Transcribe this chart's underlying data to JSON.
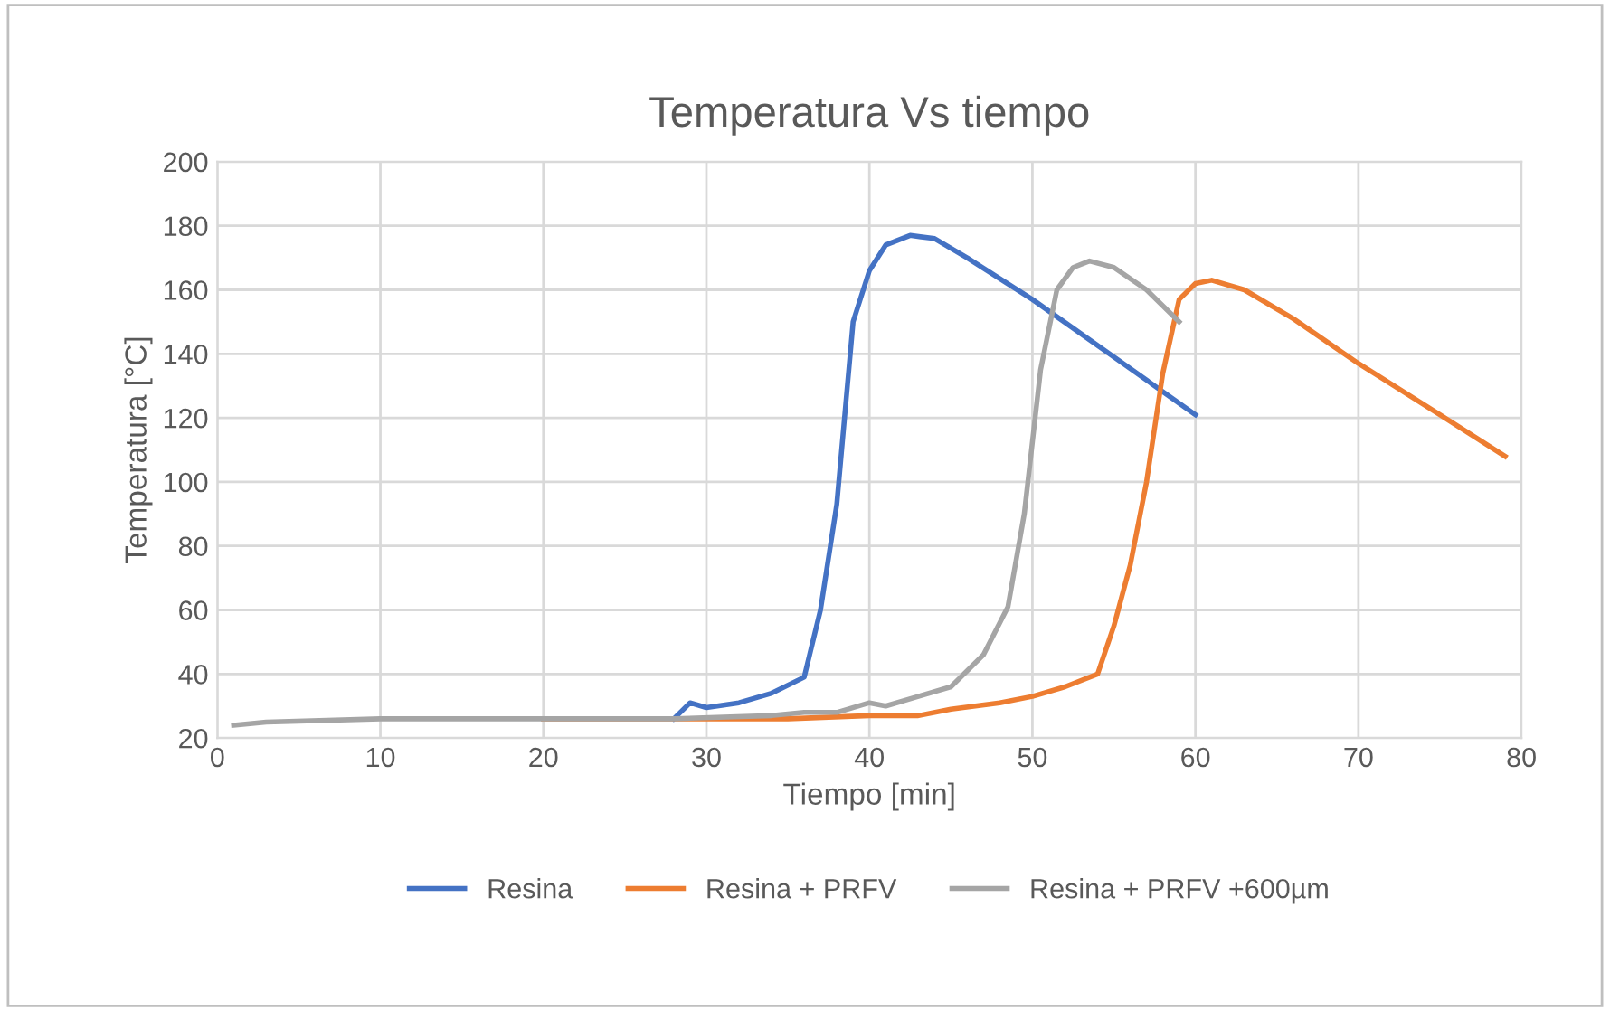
{
  "chart_data": {
    "type": "line",
    "title": "Temperatura Vs tiempo",
    "xlabel": "Tiempo [min]",
    "ylabel": "Temperatura [°C]",
    "xlim": [
      0,
      80
    ],
    "xticks": [
      0,
      10,
      20,
      30,
      40,
      50,
      60,
      70,
      80
    ],
    "ylim": [
      20,
      200
    ],
    "yticks": [
      20,
      40,
      60,
      80,
      100,
      120,
      140,
      160,
      180,
      200
    ],
    "grid": true,
    "legend": "bottom",
    "marker": "none",
    "line_style": "solid",
    "series": [
      {
        "name": "Resina",
        "color": "#4472c4",
        "x": [
          28,
          29,
          30,
          32,
          34,
          36,
          37,
          38,
          39,
          40,
          41,
          42.5,
          44,
          46,
          50,
          55,
          60
        ],
        "values": [
          26,
          31,
          29.5,
          31,
          34,
          39,
          60,
          93,
          150,
          166,
          174,
          177,
          176,
          170,
          157,
          139,
          121
        ]
      },
      {
        "name": "Resina + PRFV",
        "color": "#ed7d31",
        "x": [
          20,
          30,
          35,
          40,
          43,
          45,
          48,
          50,
          52,
          54,
          55,
          56,
          57,
          58,
          59,
          60,
          61,
          63,
          66,
          70,
          75,
          79
        ],
        "values": [
          26,
          26,
          26,
          27,
          27,
          29,
          31,
          33,
          36,
          40,
          55,
          74,
          100,
          134,
          157,
          162,
          163,
          160,
          151,
          137,
          121,
          108
        ]
      },
      {
        "name": "Resina + PRFV +600µm",
        "color": "#a5a5a5",
        "x": [
          1,
          3,
          10,
          20,
          28,
          34,
          36,
          38,
          40,
          41,
          43,
          45,
          47,
          48.5,
          49.5,
          50.5,
          51.5,
          52.5,
          53.5,
          55,
          57,
          59
        ],
        "values": [
          24,
          25,
          26,
          26,
          26,
          27,
          28,
          28,
          31,
          30,
          33,
          36,
          46,
          61,
          90,
          135,
          160,
          167,
          169,
          167,
          160,
          150
        ]
      }
    ]
  }
}
